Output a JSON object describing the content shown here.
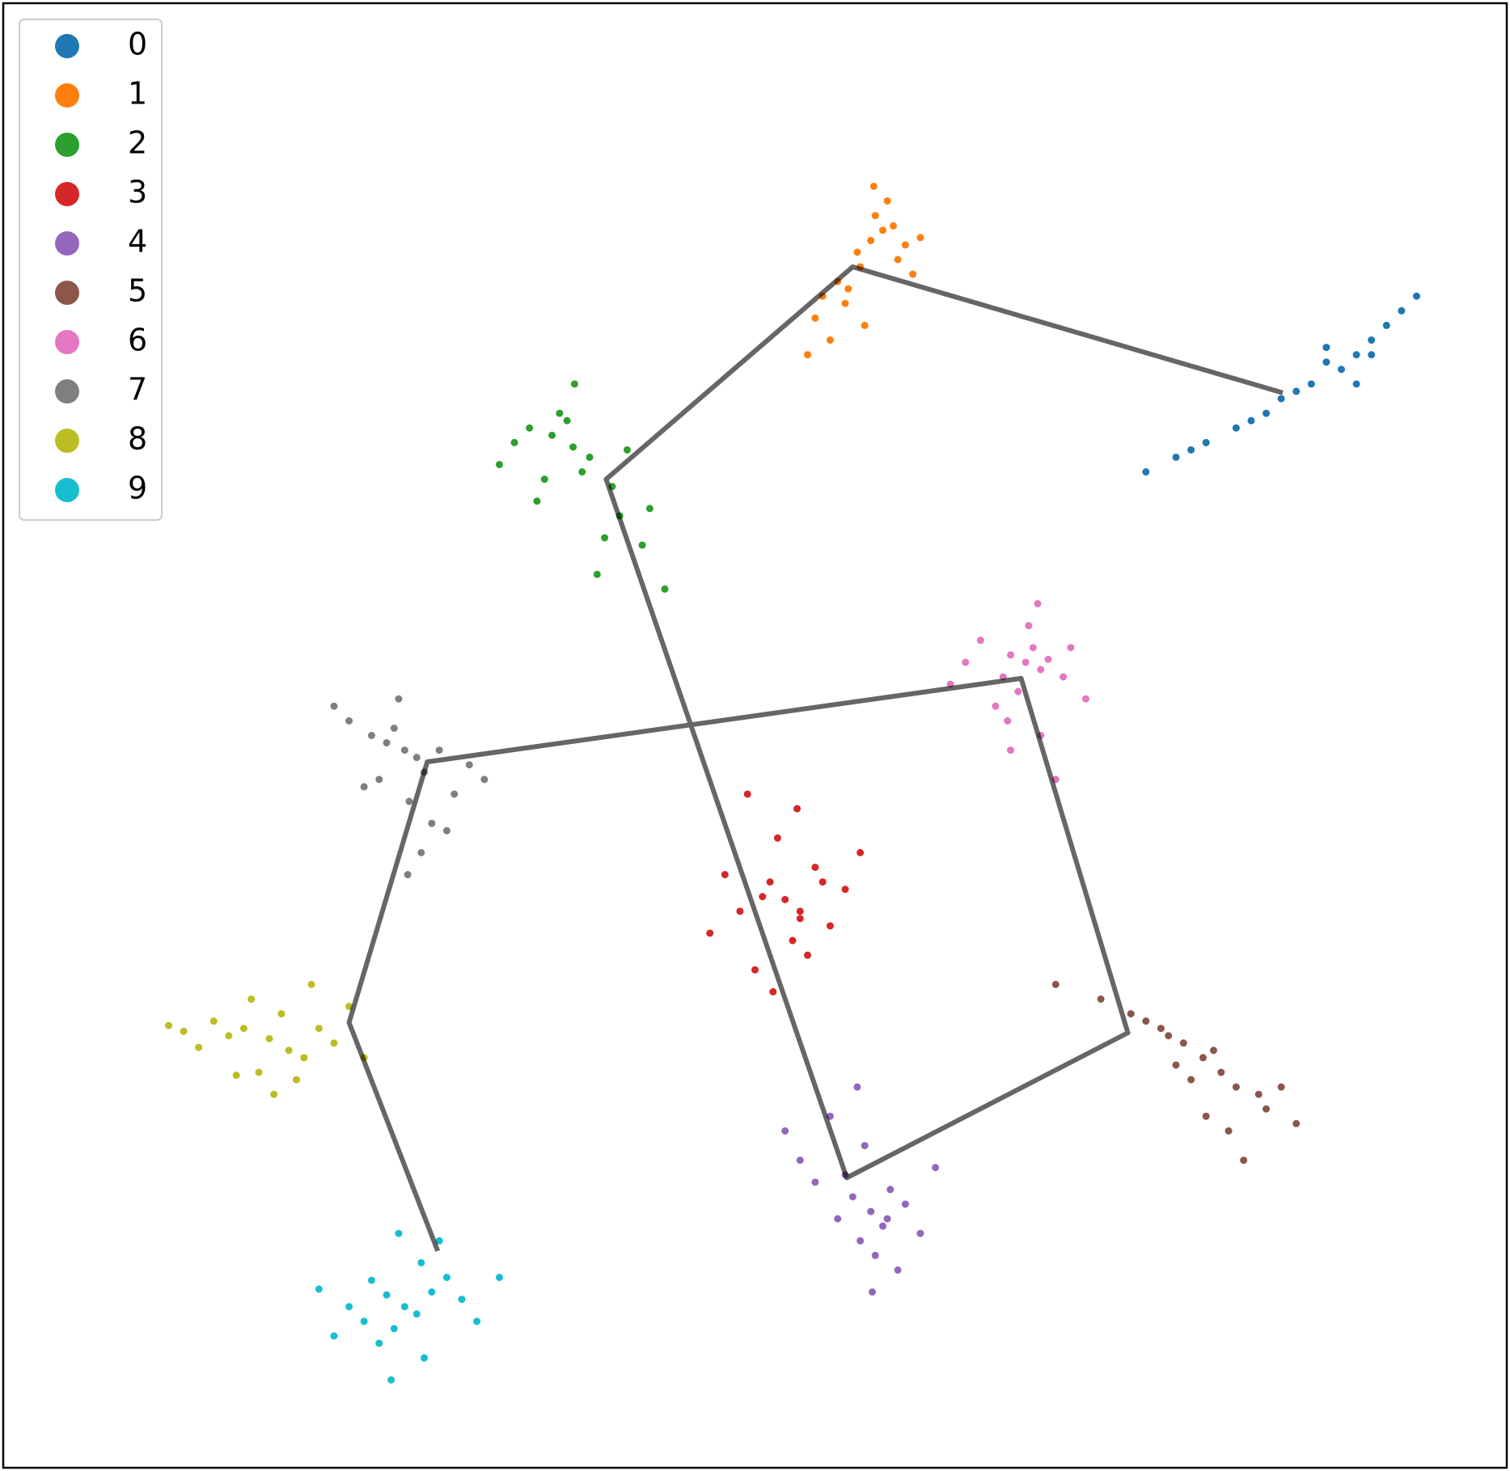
{
  "chart_data": {
    "type": "scatter",
    "xlim": [
      0,
      100
    ],
    "ylim": [
      0,
      100
    ],
    "legend": "upper left",
    "series": [
      {
        "name": "0",
        "color": "#1f77b4",
        "x": [
          89,
          90,
          91,
          87,
          85,
          88,
          92,
          93,
          86,
          84,
          82,
          80,
          78,
          76,
          90,
          94,
          88,
          83,
          79,
          91
        ],
        "values": [
          75,
          76,
          77,
          74,
          73,
          75.5,
          78,
          79,
          73.5,
          72,
          71,
          70,
          69,
          68,
          74,
          80,
          76.5,
          71.5,
          69.5,
          76
        ]
      },
      {
        "name": "1",
        "color": "#ff7f0e",
        "x": [
          57.7,
          58.5,
          56.8,
          59.2,
          57,
          55.5,
          56,
          58,
          60,
          54.5,
          55,
          57.3,
          59.5,
          53.5,
          61,
          58.8,
          56.2,
          54,
          60.5,
          57.9
        ],
        "values": [
          83.8,
          84.5,
          83,
          84.8,
          82,
          81,
          79.5,
          85.5,
          83.5,
          80,
          77,
          78,
          82.5,
          76,
          84,
          86.5,
          80.5,
          78.5,
          81.5,
          87.5
        ]
      },
      {
        "name": "2",
        "color": "#2ca02c",
        "x": [
          37.9,
          36.5,
          39,
          35,
          38.5,
          40.5,
          41,
          34,
          37,
          42.5,
          39.5,
          36,
          43,
          33,
          38,
          44,
          40,
          35.5,
          41.5,
          37.5
        ],
        "values": [
          69.7,
          70.5,
          69,
          71,
          68,
          67,
          65,
          70,
          72,
          63,
          61,
          67.5,
          65.5,
          68.5,
          74,
          60,
          63.5,
          66,
          69.5,
          71.5
        ]
      },
      {
        "name": "3",
        "color": "#d62728",
        "x": [
          52,
          51,
          53,
          50.5,
          52.5,
          54,
          49,
          55,
          51.5,
          53.5,
          48,
          56,
          50,
          52.8,
          47,
          57,
          51.2,
          54.5,
          49.5,
          53
        ],
        "values": [
          38.8,
          40,
          37.5,
          39,
          36,
          41,
          38,
          37,
          43,
          35,
          40.5,
          39.5,
          34,
          45,
          36.5,
          42,
          32.5,
          40,
          46,
          38
        ]
      },
      {
        "name": "4",
        "color": "#9467bd",
        "x": [
          57.7,
          56.5,
          58.5,
          57,
          59,
          55.5,
          60,
          56,
          58,
          54,
          61,
          57.3,
          53,
          59.5,
          55,
          62,
          57.8,
          52,
          58.8,
          56.8
        ],
        "values": [
          17.5,
          18.5,
          16.5,
          15.5,
          19,
          17,
          18,
          20,
          14.5,
          19.5,
          16,
          22,
          21,
          13.5,
          24,
          20.5,
          12,
          23,
          17,
          26
        ]
      },
      {
        "name": "5",
        "color": "#8c564b",
        "x": [
          79.8,
          81,
          78.5,
          82,
          77,
          80.5,
          83.5,
          76,
          79,
          84,
          75,
          81.5,
          78,
          85,
          73,
          82.5,
          80,
          86,
          77.5,
          70
        ],
        "values": [
          28,
          27,
          29,
          26,
          30,
          28.5,
          25.5,
          30.5,
          26.5,
          24.5,
          31,
          23,
          27.5,
          26,
          32,
          21,
          24,
          23.5,
          29.5,
          33
        ]
      },
      {
        "name": "6",
        "color": "#e377c2",
        "x": [
          68,
          67,
          69,
          68.5,
          66.5,
          69.5,
          67.5,
          65,
          70.5,
          68.2,
          66,
          71,
          64,
          69,
          67,
          72,
          63,
          68.8,
          70,
          66.8
        ],
        "values": [
          55,
          55.5,
          54.5,
          56,
          54,
          55.2,
          53,
          56.5,
          54,
          57.5,
          52,
          56,
          55,
          50,
          49,
          52.5,
          53.5,
          59,
          47,
          51
        ]
      },
      {
        "name": "7",
        "color": "#7f7f7f",
        "x": [
          26.7,
          25.5,
          27.5,
          26,
          28,
          24.5,
          29,
          25,
          27,
          30,
          23,
          28.5,
          26.3,
          31,
          24,
          27.8,
          29.5,
          22,
          32,
          26.9
        ],
        "values": [
          49,
          49.5,
          48.5,
          50.5,
          47.5,
          50,
          49,
          47,
          45.5,
          46,
          51,
          44,
          52.5,
          48,
          46.5,
          42,
          43.5,
          52,
          47,
          40.5
        ]
      },
      {
        "name": "8",
        "color": "#bcbd22",
        "x": [
          17.7,
          16,
          19,
          15,
          18.5,
          20,
          14,
          17,
          21,
          13,
          19.5,
          16.5,
          22,
          12,
          18,
          23,
          15.5,
          24,
          20.5,
          11
        ],
        "values": [
          29.3,
          30,
          28.5,
          29.5,
          31,
          28,
          30.5,
          27,
          30,
          28.7,
          26.5,
          32,
          29,
          29.8,
          25.5,
          31.5,
          26.8,
          28,
          33,
          30.2
        ]
      },
      {
        "name": "9",
        "color": "#17becf",
        "x": [
          26.7,
          25.5,
          27.5,
          24,
          28.5,
          26,
          23,
          29.5,
          25,
          27.8,
          22,
          30.5,
          26.3,
          24.5,
          28,
          31.5,
          21,
          29,
          33,
          25.8
        ],
        "values": [
          11,
          11.8,
          10.5,
          10,
          12,
          9.5,
          11,
          13,
          8.5,
          14,
          9,
          11.5,
          16,
          12.8,
          7.5,
          10,
          12.2,
          15.5,
          13,
          6
        ]
      }
    ],
    "trajectory": {
      "color": "#000000",
      "x": [
        85.1,
        56.5,
        40.1,
        56.1,
        74.8,
        67.7,
        28.2,
        23.0,
        28.9
      ],
      "y": [
        73.4,
        82.0,
        67.5,
        19.8,
        29.7,
        53.9,
        48.2,
        30.4,
        14.8
      ]
    }
  }
}
